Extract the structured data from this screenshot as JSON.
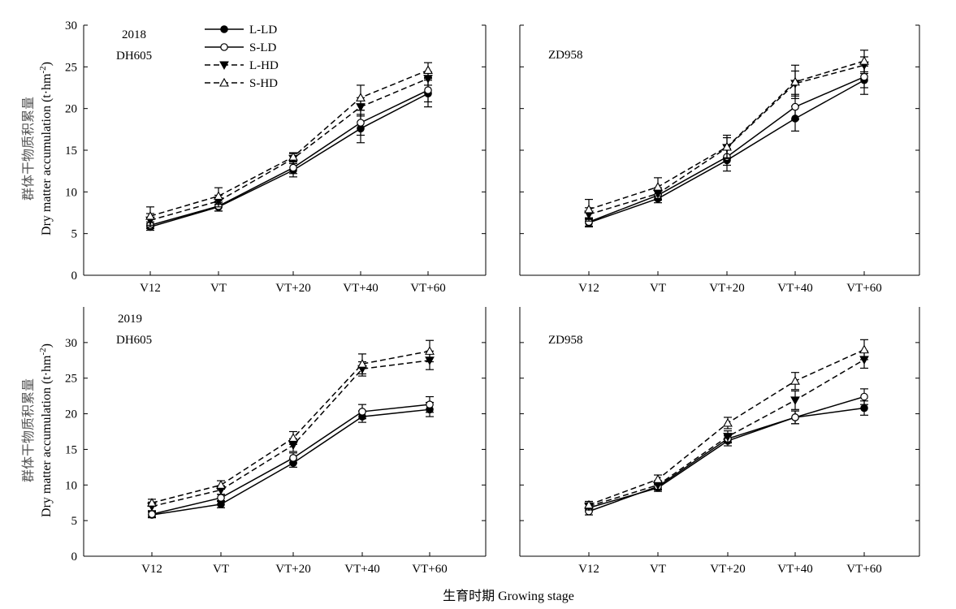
{
  "figure": {
    "y_label_cn": "群体干物质积累量",
    "y_label_en": "Dry matter accumulation (t·hm",
    "y_label_sup": "-2",
    "y_label_close": ")",
    "x_label": "生育时期 Growing stage"
  },
  "legend": [
    {
      "label": "L-LD",
      "dash": "solid",
      "marker": "filled-circle"
    },
    {
      "label": "S-LD",
      "dash": "solid",
      "marker": "open-circle"
    },
    {
      "label": "L-HD",
      "dash": "dashed",
      "marker": "filled-triangle-down"
    },
    {
      "label": "S-HD",
      "dash": "dashed",
      "marker": "open-triangle-up"
    }
  ],
  "chart_data": [
    {
      "type": "line",
      "annotations": [
        "2018",
        "DH605"
      ],
      "categories": [
        "V12",
        "VT",
        "VT+20",
        "VT+40",
        "VT+60"
      ],
      "ylim": [
        0,
        30
      ],
      "yticks": [
        0,
        5,
        10,
        15,
        20,
        25,
        30
      ],
      "series": [
        {
          "name": "L-LD",
          "values": [
            5.8,
            8.2,
            12.6,
            17.6,
            21.8
          ],
          "errors": [
            0.4,
            0.5,
            0.8,
            1.7,
            1.6
          ]
        },
        {
          "name": "S-LD",
          "values": [
            6.0,
            8.3,
            12.9,
            18.3,
            22.2
          ],
          "errors": [
            0.4,
            0.6,
            0.7,
            1.5,
            1.4
          ]
        },
        {
          "name": "L-HD",
          "values": [
            6.6,
            8.9,
            14.0,
            20.2,
            23.6
          ],
          "errors": [
            0.8,
            0.7,
            0.6,
            1.1,
            0.8
          ]
        },
        {
          "name": "S-HD",
          "values": [
            7.1,
            9.5,
            14.2,
            21.3,
            24.6
          ],
          "errors": [
            1.1,
            1.0,
            0.5,
            1.5,
            0.9
          ]
        }
      ]
    },
    {
      "type": "line",
      "annotations": [
        "ZD958"
      ],
      "categories": [
        "V12",
        "VT",
        "VT+20",
        "VT+40",
        "VT+60"
      ],
      "ylim": [
        0,
        30
      ],
      "yticks": [
        0,
        5,
        10,
        15,
        20,
        25,
        30
      ],
      "series": [
        {
          "name": "L-LD",
          "values": [
            6.3,
            9.2,
            13.8,
            18.8,
            23.4
          ],
          "errors": [
            0.5,
            0.5,
            1.3,
            1.5,
            1.7
          ]
        },
        {
          "name": "S-LD",
          "values": [
            6.4,
            9.6,
            14.2,
            20.2,
            23.8
          ],
          "errors": [
            0.5,
            0.6,
            1.0,
            1.5,
            1.3
          ]
        },
        {
          "name": "L-HD",
          "values": [
            7.3,
            9.8,
            15.3,
            23.0,
            25.2
          ],
          "errors": [
            0.8,
            0.7,
            1.2,
            1.5,
            1.0
          ]
        },
        {
          "name": "S-HD",
          "values": [
            7.9,
            10.6,
            15.4,
            23.2,
            25.7
          ],
          "errors": [
            1.2,
            1.1,
            1.4,
            2.0,
            1.3
          ]
        }
      ]
    },
    {
      "type": "line",
      "annotations": [
        "2019",
        "DH605"
      ],
      "categories": [
        "V12",
        "VT",
        "VT+20",
        "VT+40",
        "VT+60"
      ],
      "ylim": [
        0,
        35
      ],
      "yticks": [
        0,
        5,
        10,
        15,
        20,
        25,
        30
      ],
      "series": [
        {
          "name": "L-LD",
          "values": [
            5.8,
            7.3,
            13.1,
            19.6,
            20.6
          ],
          "errors": [
            0.4,
            0.5,
            0.6,
            0.8,
            1.0
          ]
        },
        {
          "name": "S-LD",
          "values": [
            5.9,
            8.2,
            13.8,
            20.3,
            21.3
          ],
          "errors": [
            0.4,
            0.5,
            0.7,
            1.0,
            1.1
          ]
        },
        {
          "name": "L-HD",
          "values": [
            7.0,
            9.3,
            15.6,
            26.3,
            27.5
          ],
          "errors": [
            0.6,
            0.6,
            0.9,
            1.0,
            1.3
          ]
        },
        {
          "name": "S-HD",
          "values": [
            7.5,
            10.0,
            16.6,
            27.0,
            28.8
          ],
          "errors": [
            0.5,
            0.6,
            0.9,
            1.4,
            1.5
          ]
        }
      ]
    },
    {
      "type": "line",
      "annotations": [
        "ZD958"
      ],
      "categories": [
        "V12",
        "VT",
        "VT+20",
        "VT+40",
        "VT+60"
      ],
      "ylim": [
        0,
        35
      ],
      "yticks": [
        0,
        5,
        10,
        15,
        20,
        25,
        30
      ],
      "series": [
        {
          "name": "L-LD",
          "values": [
            6.8,
            9.6,
            16.2,
            19.5,
            20.8
          ],
          "errors": [
            0.5,
            0.5,
            0.7,
            0.9,
            1.0
          ]
        },
        {
          "name": "S-LD",
          "values": [
            6.3,
            9.8,
            16.5,
            19.5,
            22.4
          ],
          "errors": [
            0.5,
            0.5,
            0.6,
            0.9,
            1.1
          ]
        },
        {
          "name": "L-HD",
          "values": [
            7.0,
            10.0,
            16.8,
            21.9,
            27.6
          ],
          "errors": [
            0.5,
            0.6,
            0.8,
            1.3,
            1.2
          ]
        },
        {
          "name": "S-HD",
          "values": [
            7.2,
            10.8,
            18.7,
            24.6,
            29.0
          ],
          "errors": [
            0.5,
            0.6,
            0.8,
            1.2,
            1.4
          ]
        }
      ]
    }
  ]
}
